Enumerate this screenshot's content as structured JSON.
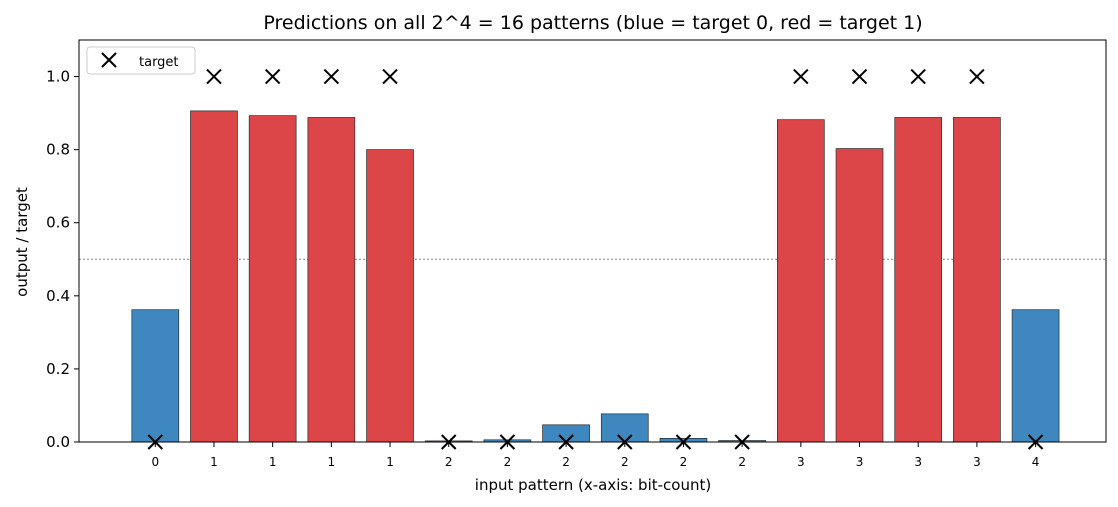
{
  "chart_data": {
    "type": "bar",
    "title": "Predictions on all 2^4 = 16 patterns (blue = target 0, red = target 1)",
    "xlabel": "input pattern  (x-axis: bit-count)",
    "ylabel": "output / target",
    "ylim": [
      0,
      1.1
    ],
    "yticks": [
      "0.0",
      "0.2",
      "0.4",
      "0.6",
      "0.8",
      "1.0"
    ],
    "categories": [
      "0",
      "1",
      "1",
      "1",
      "1",
      "2",
      "2",
      "2",
      "2",
      "2",
      "2",
      "3",
      "3",
      "3",
      "3",
      "4"
    ],
    "values": [
      0.362,
      0.906,
      0.893,
      0.888,
      0.8,
      0.003,
      0.006,
      0.047,
      0.077,
      0.01,
      0.004,
      0.882,
      0.803,
      0.888,
      0.888,
      0.362
    ],
    "targets": [
      0,
      1,
      1,
      1,
      1,
      0,
      0,
      0,
      0,
      0,
      0,
      1,
      1,
      1,
      1,
      0
    ],
    "threshold": 0.5,
    "legend": {
      "placement": "top-left",
      "entries": [
        "target"
      ]
    },
    "grid": false,
    "colors": {
      "target0": "#3f88bf",
      "target1": "#dc4648",
      "edge": "#2b2b2b",
      "marker": "#000000",
      "threshold": "#888888"
    }
  }
}
